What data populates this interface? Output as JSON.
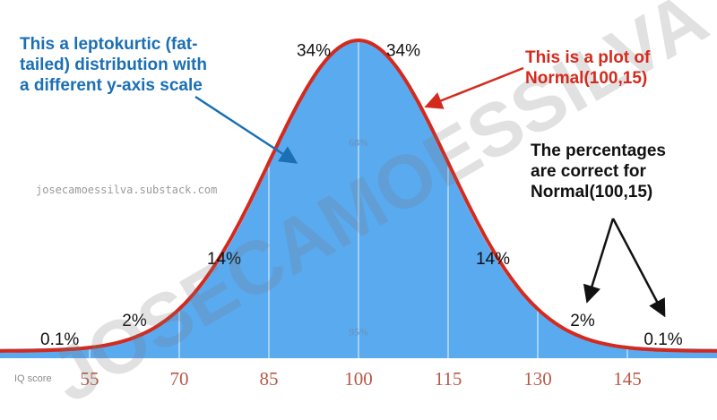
{
  "colors": {
    "area_fill": "#5aaaf0",
    "curve": "#d42a1e",
    "tick_label": "#b65a45",
    "grid": "#ffffff",
    "blue_note": "#1a6fb5",
    "red_note": "#d42a1e",
    "black_note": "#111111"
  },
  "annotations": {
    "blue_note": [
      "This a leptokurtic (fat-",
      "tailed) distribution with",
      "a different y-axis scale"
    ],
    "red_note": [
      "This is a plot of",
      "Normal(100,15)"
    ],
    "black_note": [
      "The percentages",
      "are correct for",
      "Normal(100,15)"
    ]
  },
  "watermark": {
    "url": "josecamoessilva.substack.com",
    "big_text": "JOSECAMOESSILVA"
  },
  "chart_data": {
    "type": "area",
    "xlabel": "IQ score",
    "ylabel": "",
    "xlim": [
      40,
      160
    ],
    "ticks": [
      {
        "value": 55,
        "label": "55"
      },
      {
        "value": 70,
        "label": "70"
      },
      {
        "value": 85,
        "label": "85"
      },
      {
        "value": 100,
        "label": "100"
      },
      {
        "value": 115,
        "label": "115"
      },
      {
        "value": 130,
        "label": "130"
      },
      {
        "value": 145,
        "label": "145"
      }
    ],
    "grid": true,
    "series": [
      {
        "kind": "fat-tailed area",
        "center": 100,
        "scale": 15
      },
      {
        "kind": "normal curve",
        "mean": 100,
        "sd": 15
      }
    ],
    "region_labels": [
      {
        "text": "0.1%",
        "x": 50,
        "y_frac": 0.02
      },
      {
        "text": "2%",
        "x": 62.5,
        "y_frac": 0.08
      },
      {
        "text": "14%",
        "x": 77.5,
        "y_frac": 0.28
      },
      {
        "text": "34%",
        "x": 92.5,
        "y_frac": 0.95
      },
      {
        "text": "34%",
        "x": 107.5,
        "y_frac": 0.95
      },
      {
        "text": "14%",
        "x": 122.5,
        "y_frac": 0.28
      },
      {
        "text": "2%",
        "x": 137.5,
        "y_frac": 0.08
      },
      {
        "text": "0.1%",
        "x": 151,
        "y_frac": 0.02
      }
    ],
    "band_labels": [
      {
        "text": "68%",
        "x": 100,
        "y_frac": 0.66
      },
      {
        "text": "95%",
        "x": 100,
        "y_frac": 0.05
      }
    ]
  }
}
